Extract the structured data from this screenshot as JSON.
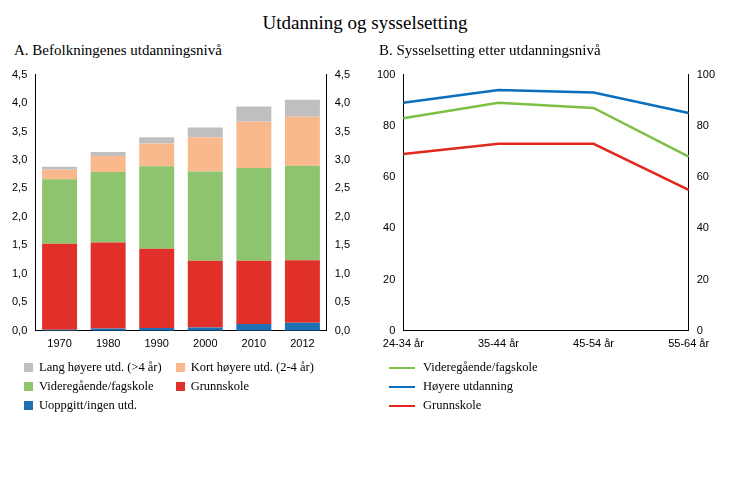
{
  "title": "Utdanning og sysselsetting",
  "chart_data": [
    {
      "type": "bar",
      "title": "A. Befolkningenes utdanningsnivå",
      "stacked": true,
      "grid": false,
      "legend": "bottom",
      "categories": [
        "1970",
        "1980",
        "1990",
        "2000",
        "2010",
        "2012"
      ],
      "series": [
        {
          "name": "Uoppgitt/ingen utd.",
          "color": "#1f6fb5",
          "values": [
            0.02,
            0.04,
            0.05,
            0.06,
            0.12,
            0.14
          ]
        },
        {
          "name": "Grunnskole",
          "color": "#e1302a",
          "values": [
            1.51,
            1.51,
            1.39,
            1.17,
            1.11,
            1.1
          ]
        },
        {
          "name": "Videregående/fagskole",
          "color": "#8fc46e",
          "values": [
            1.13,
            1.24,
            1.45,
            1.57,
            1.63,
            1.66
          ]
        },
        {
          "name": "Kort høyere utd. (2-4 år)",
          "color": "#fab98c",
          "values": [
            0.17,
            0.28,
            0.4,
            0.6,
            0.81,
            0.86
          ]
        },
        {
          "name": "Lang høyere utd. (>4 år)",
          "color": "#bfbfbf",
          "values": [
            0.05,
            0.07,
            0.11,
            0.17,
            0.27,
            0.3
          ]
        }
      ],
      "ylim": [
        0,
        4.5
      ],
      "yticks": [
        {
          "value": 0,
          "label": "0,0"
        },
        {
          "value": 0.5,
          "label": "0,5"
        },
        {
          "value": 1,
          "label": "1,0"
        },
        {
          "value": 1.5,
          "label": "1,5"
        },
        {
          "value": 2,
          "label": "2,0"
        },
        {
          "value": 2.5,
          "label": "2,5"
        },
        {
          "value": 3,
          "label": "3,0"
        },
        {
          "value": 3.5,
          "label": "3,5"
        },
        {
          "value": 4,
          "label": "4,0"
        },
        {
          "value": 4.5,
          "label": "4,5"
        }
      ],
      "y2lim": [
        0,
        4.5
      ],
      "y2ticks": [
        {
          "value": 0,
          "label": "0,0"
        },
        {
          "value": 0.5,
          "label": "0,5"
        },
        {
          "value": 1,
          "label": "1,0"
        },
        {
          "value": 1.5,
          "label": "1,5"
        },
        {
          "value": 2,
          "label": "2,0"
        },
        {
          "value": 2.5,
          "label": "2,5"
        },
        {
          "value": 3,
          "label": "3,0"
        },
        {
          "value": 3.5,
          "label": "3,5"
        },
        {
          "value": 4,
          "label": "4,0"
        },
        {
          "value": 4.5,
          "label": "4,5"
        }
      ]
    },
    {
      "type": "line",
      "title": "B. Sysselsetting etter utdanningsnivå",
      "grid": false,
      "legend": "bottom",
      "marker": "none",
      "categories": [
        "24-34 år",
        "35-44 år",
        "45-54 år",
        "55-64 år"
      ],
      "series": [
        {
          "name": "Videregående/fagskole",
          "color": "#7cc143",
          "values": [
            83,
            89,
            87,
            68
          ]
        },
        {
          "name": "Høyere utdanning",
          "color": "#0a6fbd",
          "values": [
            89,
            94,
            93,
            85
          ]
        },
        {
          "name": "Grunnskole",
          "color": "#e0281f",
          "values": [
            69,
            73,
            73,
            55
          ]
        }
      ],
      "ylim": [
        0,
        100
      ],
      "yticks": [
        0,
        20,
        40,
        60,
        80,
        100
      ],
      "y2lim": [
        0,
        100
      ],
      "y2ticks": [
        0,
        20,
        40,
        60,
        80,
        100
      ]
    }
  ]
}
